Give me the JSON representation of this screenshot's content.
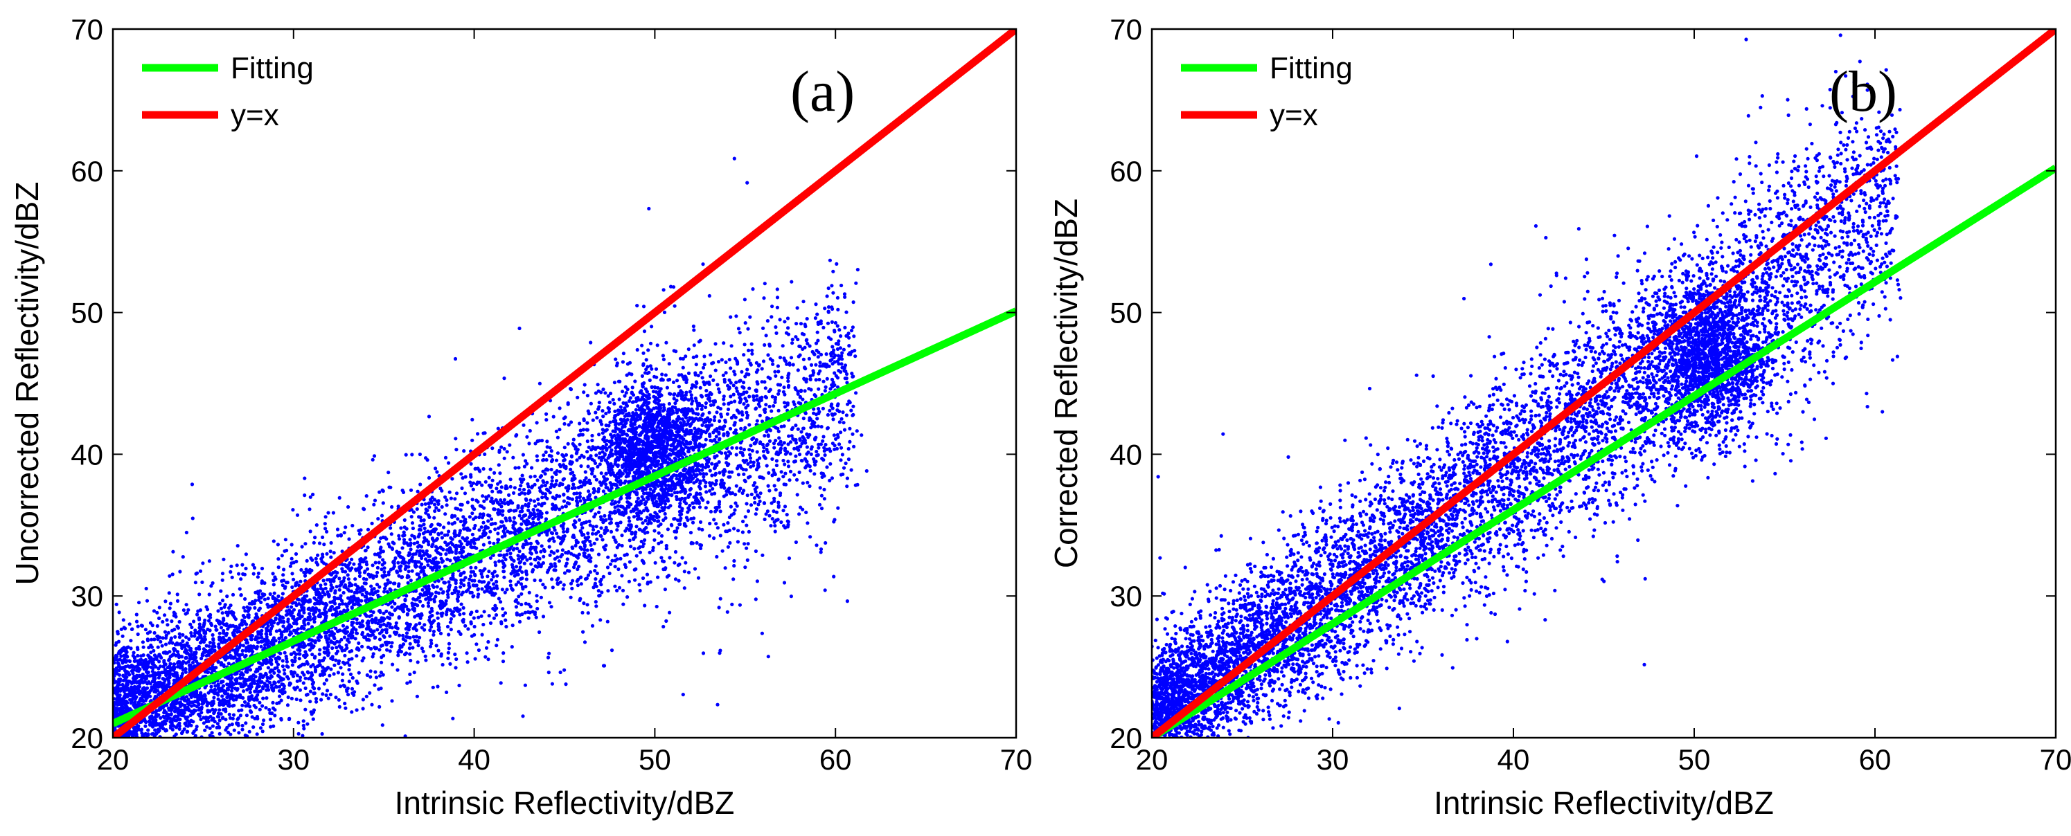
{
  "chart_data": [
    {
      "type": "scatter",
      "panel_label": "(a)",
      "xlabel": "Intrinsic Reflectivity/dBZ",
      "ylabel": "Uncorrected Reflectivity/dBZ",
      "xlim": [
        20,
        70
      ],
      "ylim": [
        20,
        70
      ],
      "xticks": [
        20,
        30,
        40,
        50,
        60,
        70
      ],
      "yticks": [
        20,
        30,
        40,
        50,
        60,
        70
      ],
      "legend_position": "top-left",
      "colors": {
        "points": "#0000ff",
        "fitting": "#00ff00",
        "identity": "#ff0000"
      },
      "lines": [
        {
          "name": "Fitting",
          "x": [
            20,
            70
          ],
          "y": [
            21.0,
            50.1
          ]
        },
        {
          "name": "y=x",
          "x": [
            20,
            70
          ],
          "y": [
            20,
            70
          ]
        }
      ],
      "scatter_model": {
        "description": "dense cloud of several thousand blue points",
        "approx_points": 9000,
        "x_range": [
          20,
          61
        ],
        "center_line": {
          "x": [
            20,
            70
          ],
          "y": [
            21.5,
            50
          ]
        },
        "spread_dBZ": 3.2,
        "extra_cluster": {
          "x": [
            47,
            53
          ],
          "y": [
            36,
            45
          ]
        }
      }
    },
    {
      "type": "scatter",
      "panel_label": "(b)",
      "xlabel": "Intrinsic Reflectivity/dBZ",
      "ylabel": "Corrected Reflectivity/dBZ",
      "xlim": [
        20,
        70
      ],
      "ylim": [
        20,
        70
      ],
      "xticks": [
        20,
        30,
        40,
        50,
        60,
        70
      ],
      "yticks": [
        20,
        30,
        40,
        50,
        60,
        70
      ],
      "legend_position": "top-left",
      "colors": {
        "points": "#0000ff",
        "fitting": "#00ff00",
        "identity": "#ff0000"
      },
      "lines": [
        {
          "name": "Fitting",
          "x": [
            20,
            70
          ],
          "y": [
            20,
            60.2
          ]
        },
        {
          "name": "y=x",
          "x": [
            20,
            70
          ],
          "y": [
            20,
            70
          ]
        }
      ],
      "scatter_model": {
        "description": "dense cloud of several thousand blue points",
        "approx_points": 9000,
        "x_range": [
          20,
          61
        ],
        "center_line": {
          "x": [
            20,
            70
          ],
          "y": [
            21,
            66
          ]
        },
        "spread_dBZ": 3.2,
        "extra_cluster": {
          "x": [
            48,
            54
          ],
          "y": [
            42,
            51
          ]
        }
      }
    }
  ]
}
